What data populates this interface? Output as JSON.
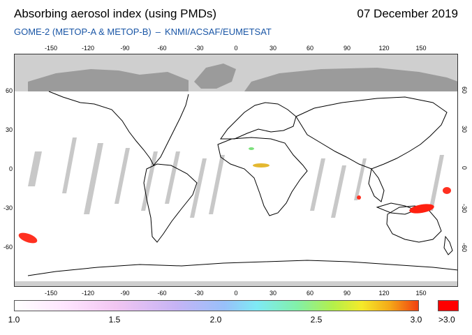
{
  "header": {
    "title": "Absorbing aerosol index (using PMDs)",
    "date": "07 December 2019",
    "subtitle_sensor": "GOME-2 (METOP-A & METOP-B)",
    "subtitle_source": "KNMI/ACSAF/EUMETSAT",
    "subtitle_dash": "–"
  },
  "map": {
    "longitude_ticks": [
      "-150",
      "-120",
      "-90",
      "-60",
      "-30",
      "0",
      "30",
      "60",
      "90",
      "120",
      "150"
    ],
    "latitude_ticks_left": [
      "60",
      "30",
      "0",
      "-30",
      "-60"
    ],
    "latitude_ticks_right": [
      "60",
      "30",
      "0",
      "-30",
      "-60"
    ],
    "colors": {
      "no_data": "#cfcfcf",
      "ice": "#999999",
      "coast": "#000000",
      "high_aerosol": "#ff0000",
      "frame": "#333333"
    }
  },
  "legend": {
    "labels": [
      "1.0",
      "1.5",
      "2.0",
      "2.5",
      "3.0"
    ],
    "max_label": ">3.0",
    "min_color": "#ffffff",
    "max_color": "#ff0000"
  }
}
